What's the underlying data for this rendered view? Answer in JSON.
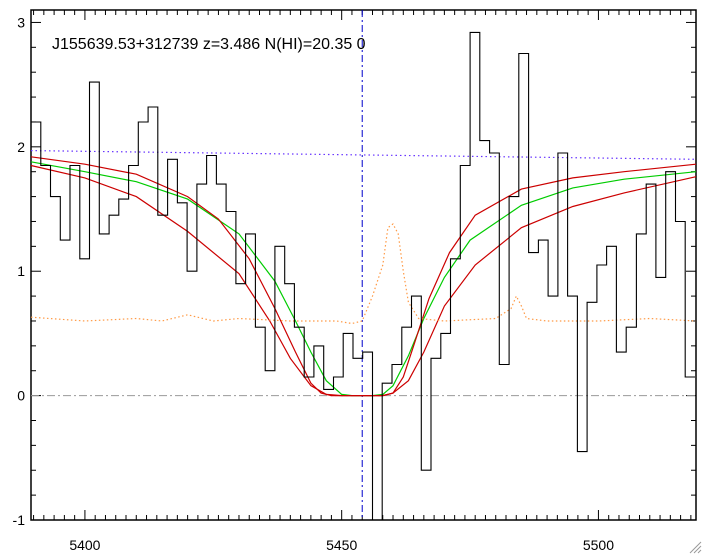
{
  "chart_data": {
    "type": "line",
    "title": "J155639.53+312739 z=3.486 N(HI)=20.35 0",
    "xlabel": "",
    "ylabel": "",
    "xlim": [
      5389.5,
      5519
    ],
    "ylim": [
      -1,
      3.1
    ],
    "x_ticks": [
      5400,
      5450,
      5500
    ],
    "y_ticks": [
      -1,
      0,
      1,
      2,
      3
    ],
    "grid": false,
    "colors": {
      "flux": "#000000",
      "model_fit": "#00cc00",
      "model_bounds": "#cc0000",
      "continuum": "#6633ff",
      "error": "#ff9944",
      "center_line": "#0000cc",
      "zero_line": "#999999"
    },
    "center_wavelength": 5454,
    "flux": {
      "x": [
        5389.5,
        5391.4,
        5393.3,
        5395.2,
        5397.1,
        5399,
        5400.9,
        5402.8,
        5404.7,
        5406.6,
        5408.5,
        5410.4,
        5412.3,
        5414.2,
        5416.1,
        5418,
        5419.9,
        5421.8,
        5423.7,
        5425.6,
        5427.5,
        5429.4,
        5431.3,
        5433.2,
        5435.1,
        5437,
        5438.9,
        5440.8,
        5442.7,
        5444.6,
        5446.5,
        5448.4,
        5450.3,
        5452.2,
        5454.1,
        5456,
        5457.9,
        5459.8,
        5461.7,
        5463.6,
        5465.5,
        5467.4,
        5469.3,
        5471.2,
        5473.1,
        5475,
        5476.9,
        5478.8,
        5480.7,
        5482.6,
        5484.5,
        5486.4,
        5488.3,
        5490.2,
        5492.1,
        5494,
        5495.9,
        5497.8,
        5499.7,
        5501.6,
        5503.5,
        5505.4,
        5507.4,
        5509.3,
        5511.2,
        5513.1,
        5515,
        5516.9
      ],
      "y": [
        2.2,
        1.85,
        1.6,
        1.25,
        1.85,
        1.1,
        2.52,
        1.3,
        1.45,
        1.58,
        1.85,
        2.2,
        2.32,
        1.45,
        1.9,
        1.55,
        1.0,
        1.7,
        1.93,
        1.7,
        1.48,
        0.9,
        1.3,
        0.55,
        0.2,
        1.2,
        0.9,
        0.55,
        0.15,
        0.4,
        0.05,
        0.15,
        0.5,
        0.3,
        0.35,
        -1.0,
        0.1,
        0.25,
        0.55,
        0.8,
        -0.6,
        0.3,
        0.5,
        1.1,
        1.85,
        2.92,
        2.05,
        1.95,
        0.25,
        1.6,
        2.75,
        1.15,
        1.25,
        0.8,
        1.95,
        0.8,
        -0.45,
        0.75,
        1.05,
        1.2,
        0.35,
        0.55,
        1.3,
        1.7,
        0.95,
        1.8,
        1.4,
        0.15
      ]
    },
    "series": [
      {
        "x": [
          5389.5,
          5400,
          5410,
          5420,
          5430,
          5437,
          5441,
          5444,
          5447,
          5450,
          5452,
          5454,
          5456,
          5458,
          5460,
          5463,
          5466,
          5470,
          5475,
          5485,
          5495,
          5505,
          5519
        ],
        "y": [
          1.88,
          1.8,
          1.72,
          1.58,
          1.3,
          0.92,
          0.6,
          0.35,
          0.12,
          0.01,
          0.0,
          0.0,
          0.0,
          0.01,
          0.08,
          0.32,
          0.62,
          0.95,
          1.25,
          1.53,
          1.67,
          1.74,
          1.8
        ]
      },
      {
        "x": [
          5389.5,
          5400,
          5410,
          5420,
          5426,
          5432,
          5437,
          5441,
          5444,
          5446,
          5448,
          5450,
          5452,
          5454,
          5456,
          5458,
          5460,
          5462,
          5464,
          5467,
          5471,
          5476,
          5485,
          5495,
          5505,
          5519
        ],
        "y": [
          1.92,
          1.86,
          1.78,
          1.6,
          1.42,
          1.1,
          0.7,
          0.35,
          0.1,
          0.02,
          0.0,
          0.0,
          0.0,
          0.0,
          0.0,
          0.0,
          0.02,
          0.15,
          0.4,
          0.78,
          1.15,
          1.45,
          1.66,
          1.75,
          1.8,
          1.86
        ]
      },
      {
        "x": [
          5389.5,
          5400,
          5410,
          5420,
          5430,
          5436,
          5440,
          5444,
          5447,
          5450,
          5452,
          5454,
          5456,
          5458,
          5460,
          5463,
          5466,
          5470,
          5476,
          5485,
          5495,
          5505,
          5519
        ],
        "y": [
          1.85,
          1.75,
          1.6,
          1.32,
          0.98,
          0.6,
          0.3,
          0.08,
          0.01,
          0.0,
          0.0,
          0.0,
          0.0,
          0.0,
          0.02,
          0.12,
          0.35,
          0.72,
          1.05,
          1.35,
          1.52,
          1.63,
          1.76
        ]
      },
      {
        "x": [
          5389.5,
          5519
        ],
        "y": [
          1.97,
          1.9
        ]
      },
      {
        "x": [
          5389.5,
          5400,
          5410,
          5415,
          5420,
          5425,
          5430,
          5440,
          5449,
          5452,
          5454,
          5456,
          5458,
          5459,
          5460,
          5461,
          5462,
          5463,
          5465,
          5470,
          5480,
          5483,
          5484,
          5485,
          5486,
          5490,
          5500,
          5510,
          5519
        ],
        "y": [
          0.63,
          0.6,
          0.62,
          0.6,
          0.65,
          0.6,
          0.62,
          0.6,
          0.6,
          0.58,
          0.6,
          0.8,
          1.05,
          1.35,
          1.38,
          1.3,
          1.0,
          0.75,
          0.62,
          0.6,
          0.62,
          0.7,
          0.8,
          0.72,
          0.62,
          0.6,
          0.6,
          0.62,
          0.6
        ]
      }
    ]
  }
}
